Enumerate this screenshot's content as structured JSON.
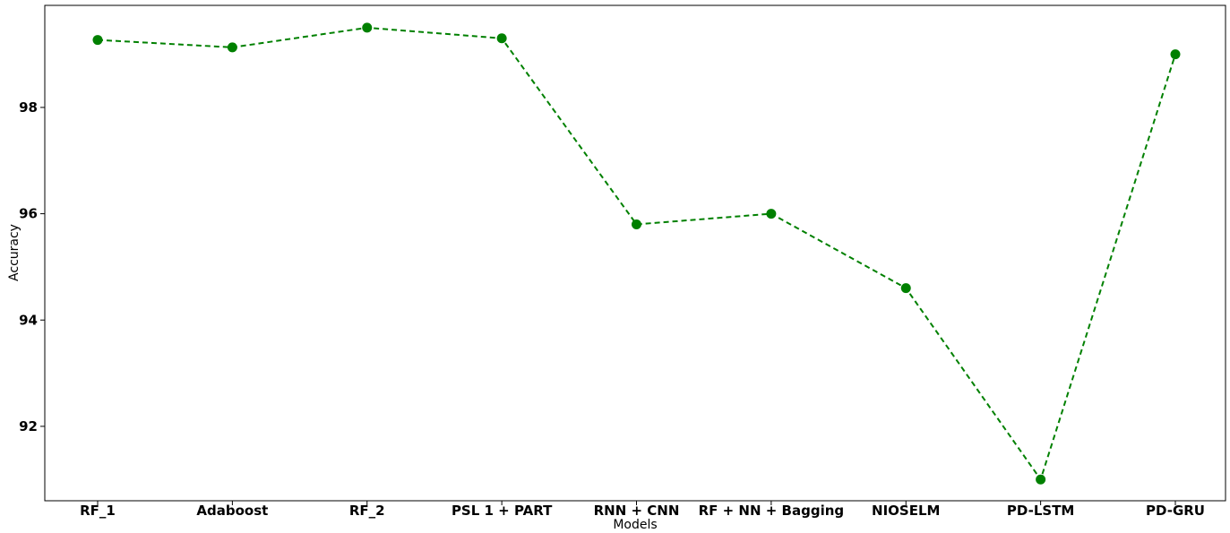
{
  "chart_data": {
    "type": "line",
    "title": "",
    "xlabel": "Models",
    "ylabel": "Accuracy",
    "categories": [
      "RF_1",
      "Adaboost",
      "RF_2",
      "PSL 1 + PART",
      "RNN + CNN",
      "RF + NN + Bagging",
      "NIOSELM",
      "PD-LSTM",
      "PD-GRU"
    ],
    "series": [
      {
        "values": [
          99.27,
          99.13,
          99.5,
          99.3,
          95.8,
          96.0,
          94.6,
          91.0,
          99.0
        ]
      }
    ],
    "ylim": [
      90.6,
      99.92
    ],
    "yticks": [
      92,
      94,
      96,
      98
    ],
    "ytick_labels": [
      "92",
      "94",
      "96",
      "98"
    ],
    "grid": false,
    "line_style": "dashed",
    "marker": "circle",
    "colors": {
      "line": "#008000",
      "marker": "#008000"
    }
  }
}
